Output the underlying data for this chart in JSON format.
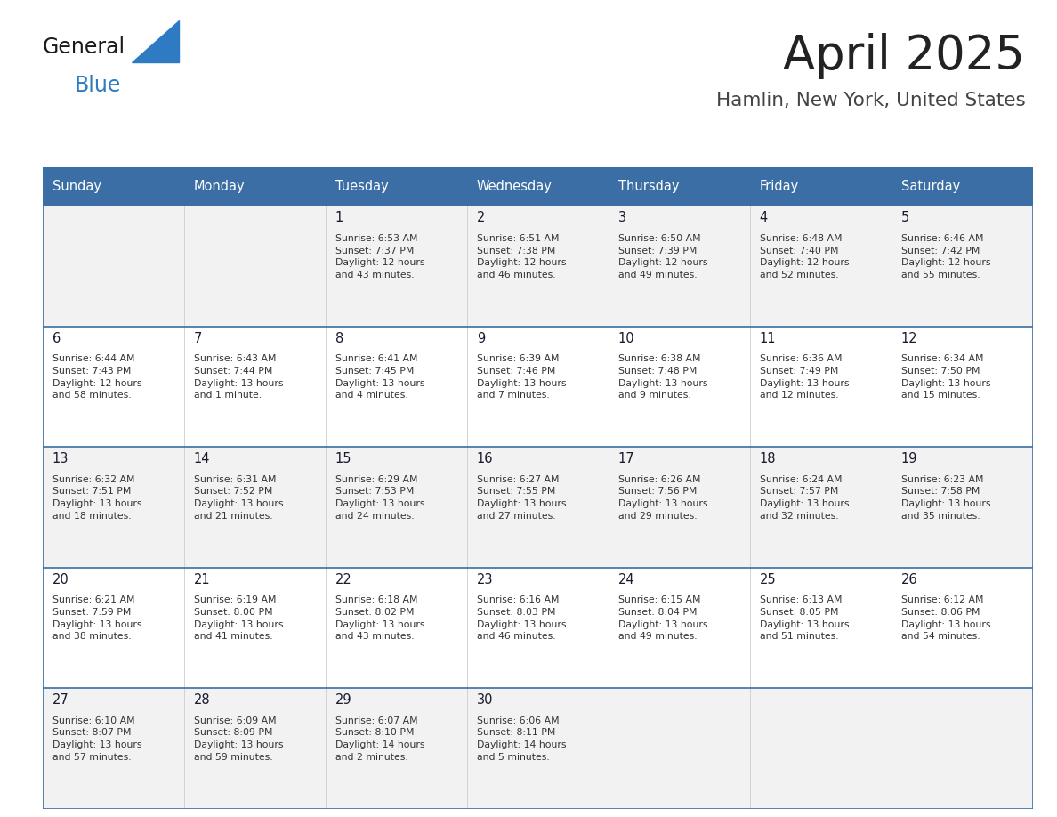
{
  "title": "April 2025",
  "subtitle": "Hamlin, New York, United States",
  "header_bg_color": "#3a6ea5",
  "header_text_color": "#ffffff",
  "cell_bg_color_light": "#f2f2f2",
  "cell_bg_color_white": "#ffffff",
  "day_number_color": "#1a1a2e",
  "cell_text_color": "#333333",
  "separator_color": "#3a6ea5",
  "days_of_week": [
    "Sunday",
    "Monday",
    "Tuesday",
    "Wednesday",
    "Thursday",
    "Friday",
    "Saturday"
  ],
  "title_color": "#222222",
  "subtitle_color": "#444444",
  "logo_triangle_color": "#2e7bc4",
  "weeks": [
    [
      {
        "day": "",
        "info": ""
      },
      {
        "day": "",
        "info": ""
      },
      {
        "day": "1",
        "info": "Sunrise: 6:53 AM\nSunset: 7:37 PM\nDaylight: 12 hours\nand 43 minutes."
      },
      {
        "day": "2",
        "info": "Sunrise: 6:51 AM\nSunset: 7:38 PM\nDaylight: 12 hours\nand 46 minutes."
      },
      {
        "day": "3",
        "info": "Sunrise: 6:50 AM\nSunset: 7:39 PM\nDaylight: 12 hours\nand 49 minutes."
      },
      {
        "day": "4",
        "info": "Sunrise: 6:48 AM\nSunset: 7:40 PM\nDaylight: 12 hours\nand 52 minutes."
      },
      {
        "day": "5",
        "info": "Sunrise: 6:46 AM\nSunset: 7:42 PM\nDaylight: 12 hours\nand 55 minutes."
      }
    ],
    [
      {
        "day": "6",
        "info": "Sunrise: 6:44 AM\nSunset: 7:43 PM\nDaylight: 12 hours\nand 58 minutes."
      },
      {
        "day": "7",
        "info": "Sunrise: 6:43 AM\nSunset: 7:44 PM\nDaylight: 13 hours\nand 1 minute."
      },
      {
        "day": "8",
        "info": "Sunrise: 6:41 AM\nSunset: 7:45 PM\nDaylight: 13 hours\nand 4 minutes."
      },
      {
        "day": "9",
        "info": "Sunrise: 6:39 AM\nSunset: 7:46 PM\nDaylight: 13 hours\nand 7 minutes."
      },
      {
        "day": "10",
        "info": "Sunrise: 6:38 AM\nSunset: 7:48 PM\nDaylight: 13 hours\nand 9 minutes."
      },
      {
        "day": "11",
        "info": "Sunrise: 6:36 AM\nSunset: 7:49 PM\nDaylight: 13 hours\nand 12 minutes."
      },
      {
        "day": "12",
        "info": "Sunrise: 6:34 AM\nSunset: 7:50 PM\nDaylight: 13 hours\nand 15 minutes."
      }
    ],
    [
      {
        "day": "13",
        "info": "Sunrise: 6:32 AM\nSunset: 7:51 PM\nDaylight: 13 hours\nand 18 minutes."
      },
      {
        "day": "14",
        "info": "Sunrise: 6:31 AM\nSunset: 7:52 PM\nDaylight: 13 hours\nand 21 minutes."
      },
      {
        "day": "15",
        "info": "Sunrise: 6:29 AM\nSunset: 7:53 PM\nDaylight: 13 hours\nand 24 minutes."
      },
      {
        "day": "16",
        "info": "Sunrise: 6:27 AM\nSunset: 7:55 PM\nDaylight: 13 hours\nand 27 minutes."
      },
      {
        "day": "17",
        "info": "Sunrise: 6:26 AM\nSunset: 7:56 PM\nDaylight: 13 hours\nand 29 minutes."
      },
      {
        "day": "18",
        "info": "Sunrise: 6:24 AM\nSunset: 7:57 PM\nDaylight: 13 hours\nand 32 minutes."
      },
      {
        "day": "19",
        "info": "Sunrise: 6:23 AM\nSunset: 7:58 PM\nDaylight: 13 hours\nand 35 minutes."
      }
    ],
    [
      {
        "day": "20",
        "info": "Sunrise: 6:21 AM\nSunset: 7:59 PM\nDaylight: 13 hours\nand 38 minutes."
      },
      {
        "day": "21",
        "info": "Sunrise: 6:19 AM\nSunset: 8:00 PM\nDaylight: 13 hours\nand 41 minutes."
      },
      {
        "day": "22",
        "info": "Sunrise: 6:18 AM\nSunset: 8:02 PM\nDaylight: 13 hours\nand 43 minutes."
      },
      {
        "day": "23",
        "info": "Sunrise: 6:16 AM\nSunset: 8:03 PM\nDaylight: 13 hours\nand 46 minutes."
      },
      {
        "day": "24",
        "info": "Sunrise: 6:15 AM\nSunset: 8:04 PM\nDaylight: 13 hours\nand 49 minutes."
      },
      {
        "day": "25",
        "info": "Sunrise: 6:13 AM\nSunset: 8:05 PM\nDaylight: 13 hours\nand 51 minutes."
      },
      {
        "day": "26",
        "info": "Sunrise: 6:12 AM\nSunset: 8:06 PM\nDaylight: 13 hours\nand 54 minutes."
      }
    ],
    [
      {
        "day": "27",
        "info": "Sunrise: 6:10 AM\nSunset: 8:07 PM\nDaylight: 13 hours\nand 57 minutes."
      },
      {
        "day": "28",
        "info": "Sunrise: 6:09 AM\nSunset: 8:09 PM\nDaylight: 13 hours\nand 59 minutes."
      },
      {
        "day": "29",
        "info": "Sunrise: 6:07 AM\nSunset: 8:10 PM\nDaylight: 14 hours\nand 2 minutes."
      },
      {
        "day": "30",
        "info": "Sunrise: 6:06 AM\nSunset: 8:11 PM\nDaylight: 14 hours\nand 5 minutes."
      },
      {
        "day": "",
        "info": ""
      },
      {
        "day": "",
        "info": ""
      },
      {
        "day": "",
        "info": ""
      }
    ]
  ]
}
